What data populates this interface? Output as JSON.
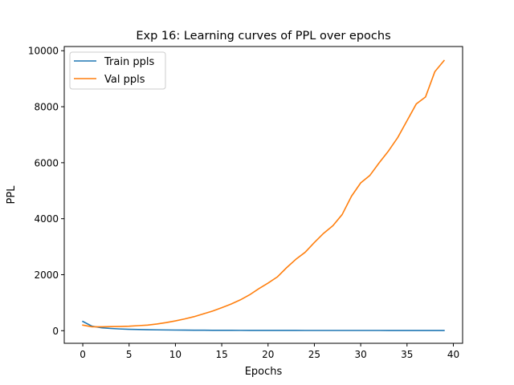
{
  "chart_data": {
    "type": "line",
    "title": "Exp 16: Learning curves of PPL over epochs",
    "xlabel": "Epochs",
    "ylabel": "PPL",
    "xlim": [
      -2,
      41
    ],
    "ylim": [
      -450,
      10150
    ],
    "xticks": [
      0,
      5,
      10,
      15,
      20,
      25,
      30,
      35,
      40
    ],
    "yticks": [
      0,
      2000,
      4000,
      6000,
      8000,
      10000
    ],
    "grid": false,
    "legend_position": "top-left",
    "x": [
      0,
      1,
      2,
      3,
      4,
      5,
      6,
      7,
      8,
      9,
      10,
      11,
      12,
      13,
      14,
      15,
      16,
      17,
      18,
      19,
      20,
      21,
      22,
      23,
      24,
      25,
      26,
      27,
      28,
      29,
      30,
      31,
      32,
      33,
      34,
      35,
      36,
      37,
      38,
      39
    ],
    "series": [
      {
        "name": "Train ppls",
        "color": "#1f77b4",
        "values": [
          330,
          160,
          105,
          80,
          62,
          50,
          42,
          35,
          30,
          26,
          23,
          20,
          18,
          16,
          15,
          14,
          13,
          12,
          11,
          10.5,
          10,
          9.6,
          9.2,
          9,
          8.8,
          8.6,
          8.5,
          8.4,
          8.3,
          8.2,
          8.1,
          8,
          8,
          7.9,
          7.9,
          7.8,
          7.8,
          7.8,
          7.7,
          7.7
        ]
      },
      {
        "name": "Val ppls",
        "color": "#ff7f0e",
        "values": [
          200,
          140,
          140,
          145,
          150,
          160,
          180,
          200,
          240,
          290,
          350,
          420,
          500,
          600,
          700,
          820,
          950,
          1100,
          1280,
          1500,
          1700,
          1920,
          2250,
          2550,
          2800,
          3150,
          3480,
          3750,
          4150,
          4800,
          5280,
          5550,
          6000,
          6420,
          6900,
          7500,
          8100,
          8350,
          9250,
          9650
        ]
      }
    ]
  }
}
